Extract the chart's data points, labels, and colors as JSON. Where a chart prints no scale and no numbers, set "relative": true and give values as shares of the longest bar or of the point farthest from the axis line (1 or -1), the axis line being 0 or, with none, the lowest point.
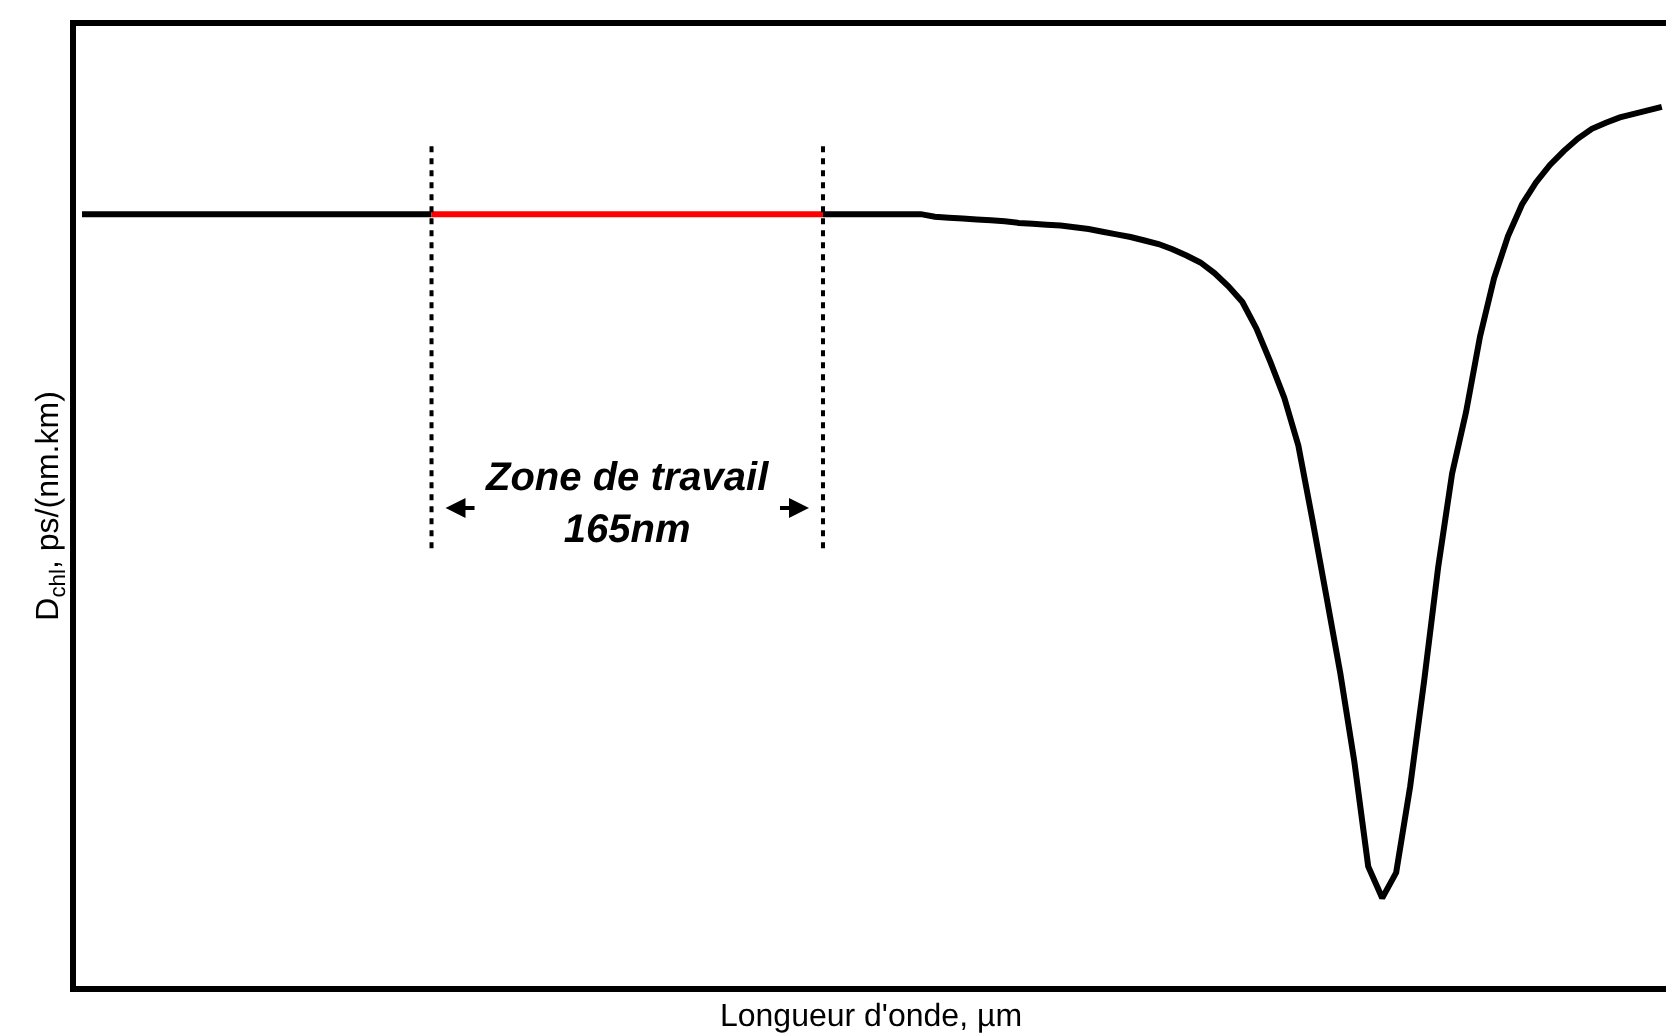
{
  "chart_data": {
    "type": "line",
    "xlabel": "Longueur d'onde, µm",
    "ylabel": "D$_{chl}$, ps/(nm.km)",
    "annotations": [
      "Zone de travail\n165nm"
    ],
    "relative": true,
    "categories": [
      null,
      null,
      null,
      null,
      null,
      null,
      null,
      null,
      null,
      null,
      null,
      null,
      null,
      null,
      null,
      null,
      null,
      null,
      null,
      null,
      null,
      null,
      null,
      null,
      null,
      null,
      null,
      null,
      null,
      null,
      null,
      null,
      null,
      null,
      null,
      null,
      null,
      null,
      null,
      null,
      null,
      null,
      null,
      null,
      null,
      null,
      null,
      null,
      null,
      null,
      null,
      null,
      null,
      null,
      null,
      null,
      null,
      null,
      null,
      null,
      null,
      null,
      null,
      null,
      null,
      null,
      null,
      null,
      null,
      null,
      null,
      null,
      null,
      null,
      null,
      null,
      null,
      null,
      null,
      null,
      null,
      null,
      null,
      null,
      null,
      null,
      null,
      null,
      null,
      null,
      null,
      null,
      null,
      null,
      null,
      null,
      null,
      null,
      null,
      null,
      null,
      null,
      null,
      null,
      null,
      null,
      null,
      null,
      null,
      null,
      null,
      null,
      null,
      null
    ],
    "series": [
      {
        "color": "#000000",
        "values": [
          0.878,
          0.878,
          0.878,
          0.878,
          0.878,
          0.878,
          0.878,
          0.878,
          0.878,
          0.878,
          0.878,
          0.878,
          0.878,
          0.878,
          0.878,
          0.878,
          0.878,
          0.878,
          0.878,
          0.878,
          0.878,
          0.878,
          0.878,
          0.878,
          0.878,
          0.878,
          null,
          null,
          null,
          null,
          null,
          null,
          null,
          null,
          null,
          null,
          null,
          null,
          null,
          null,
          null,
          null,
          null,
          null,
          null,
          null,
          null,
          null,
          null,
          null,
          null,
          null,
          null,
          0.878,
          0.878,
          0.878,
          0.878,
          0.878,
          0.878,
          0.878,
          0.878,
          0.875,
          0.874,
          0.873,
          0.872,
          0.871,
          0.87,
          0.868,
          0.867,
          0.866,
          0.865,
          0.863,
          0.861,
          0.858,
          0.855,
          0.852,
          0.848,
          0.844,
          0.838,
          0.831,
          0.823,
          0.811,
          0.796,
          0.778,
          0.748,
          0.71,
          0.669,
          0.615,
          0.531,
          0.444,
          0.356,
          0.256,
          0.136,
          0.1,
          0.129,
          0.227,
          0.347,
          0.476,
          0.583,
          0.653,
          0.739,
          0.805,
          0.853,
          0.889,
          0.914,
          0.934,
          0.95,
          0.964,
          0.975,
          0.982,
          0.988,
          0.992,
          0.996,
          1
        ]
      },
      {
        "color": "#ff0000",
        "values": [
          null,
          null,
          null,
          null,
          null,
          null,
          null,
          null,
          null,
          null,
          null,
          null,
          null,
          null,
          null,
          null,
          null,
          null,
          null,
          null,
          null,
          null,
          null,
          null,
          null,
          0.878,
          0.878,
          0.878,
          0.878,
          0.878,
          0.878,
          0.878,
          0.878,
          0.878,
          0.878,
          0.878,
          0.878,
          0.878,
          0.878,
          0.878,
          0.878,
          0.878,
          0.878,
          0.878,
          0.878,
          0.878,
          0.878,
          0.878,
          0.878,
          0.878,
          0.878,
          0.878,
          0.878,
          0.878,
          null,
          null,
          null,
          null,
          null,
          null,
          null,
          null,
          null,
          null,
          null,
          null,
          null,
          null,
          null,
          null,
          null,
          null,
          null,
          null,
          null,
          null,
          null,
          null,
          null,
          null,
          null,
          null,
          null,
          null,
          null,
          null,
          null,
          null,
          null,
          null,
          null,
          null,
          null,
          null,
          null,
          null,
          null,
          null,
          null,
          null,
          null,
          null,
          null,
          null,
          null,
          null,
          null,
          null,
          null,
          null,
          null,
          null,
          null,
          null
        ]
      }
    ]
  }
}
